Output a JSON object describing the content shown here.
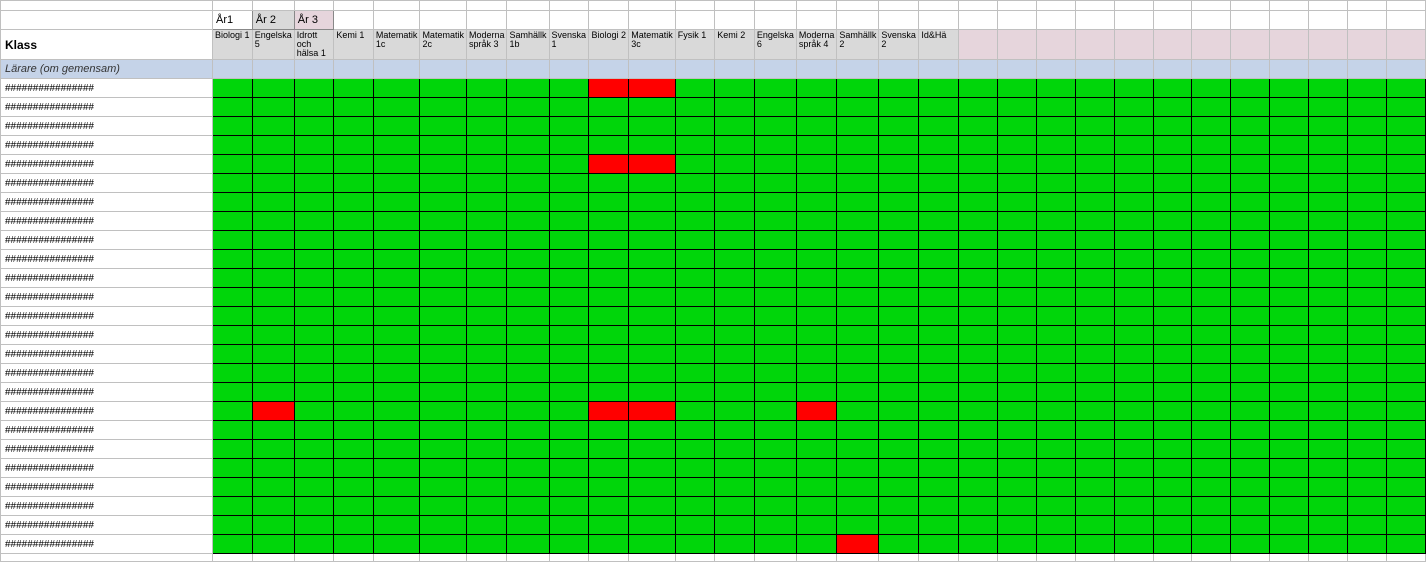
{
  "colors": {
    "green": "#00d60a",
    "red": "#ff0000",
    "white": "#ffffff",
    "year1_bg": "#ffffff",
    "year2_bg": "#d9d9d9",
    "year3_bg": "#e6d5dc",
    "subject_bg": "#d9d9d9",
    "subject_bg_light": "#e6d5dc",
    "larare_bg": "#c5d3e8",
    "border": "#c0c0c0"
  },
  "year_labels": [
    "År1",
    "År 2",
    "År 3"
  ],
  "klass_label": "Klass",
  "larare_label": "Lärare (om gemensam)",
  "hash_text": "################",
  "subjects": [
    "Biologi 1",
    "Engelska 5",
    "Idrott och hälsa 1",
    "Kemi 1",
    "Matematik 1c",
    "Matematik 2c",
    "Moderna språk 3",
    "Samhällk 1b",
    "Svenska 1",
    "Biologi 2",
    "Matematik 3c",
    "Fysik 1",
    "Kemi 2",
    "Engelska 6",
    "Moderna språk 4",
    "Samhällk 2",
    "Svenska 2",
    "Id&Hä"
  ],
  "num_extra_cols": 12,
  "num_rows": 25,
  "red_cells": [
    [
      0,
      9
    ],
    [
      0,
      10
    ],
    [
      4,
      9
    ],
    [
      4,
      10
    ],
    [
      17,
      1
    ],
    [
      17,
      9
    ],
    [
      17,
      10
    ],
    [
      17,
      14
    ],
    [
      24,
      15
    ]
  ]
}
